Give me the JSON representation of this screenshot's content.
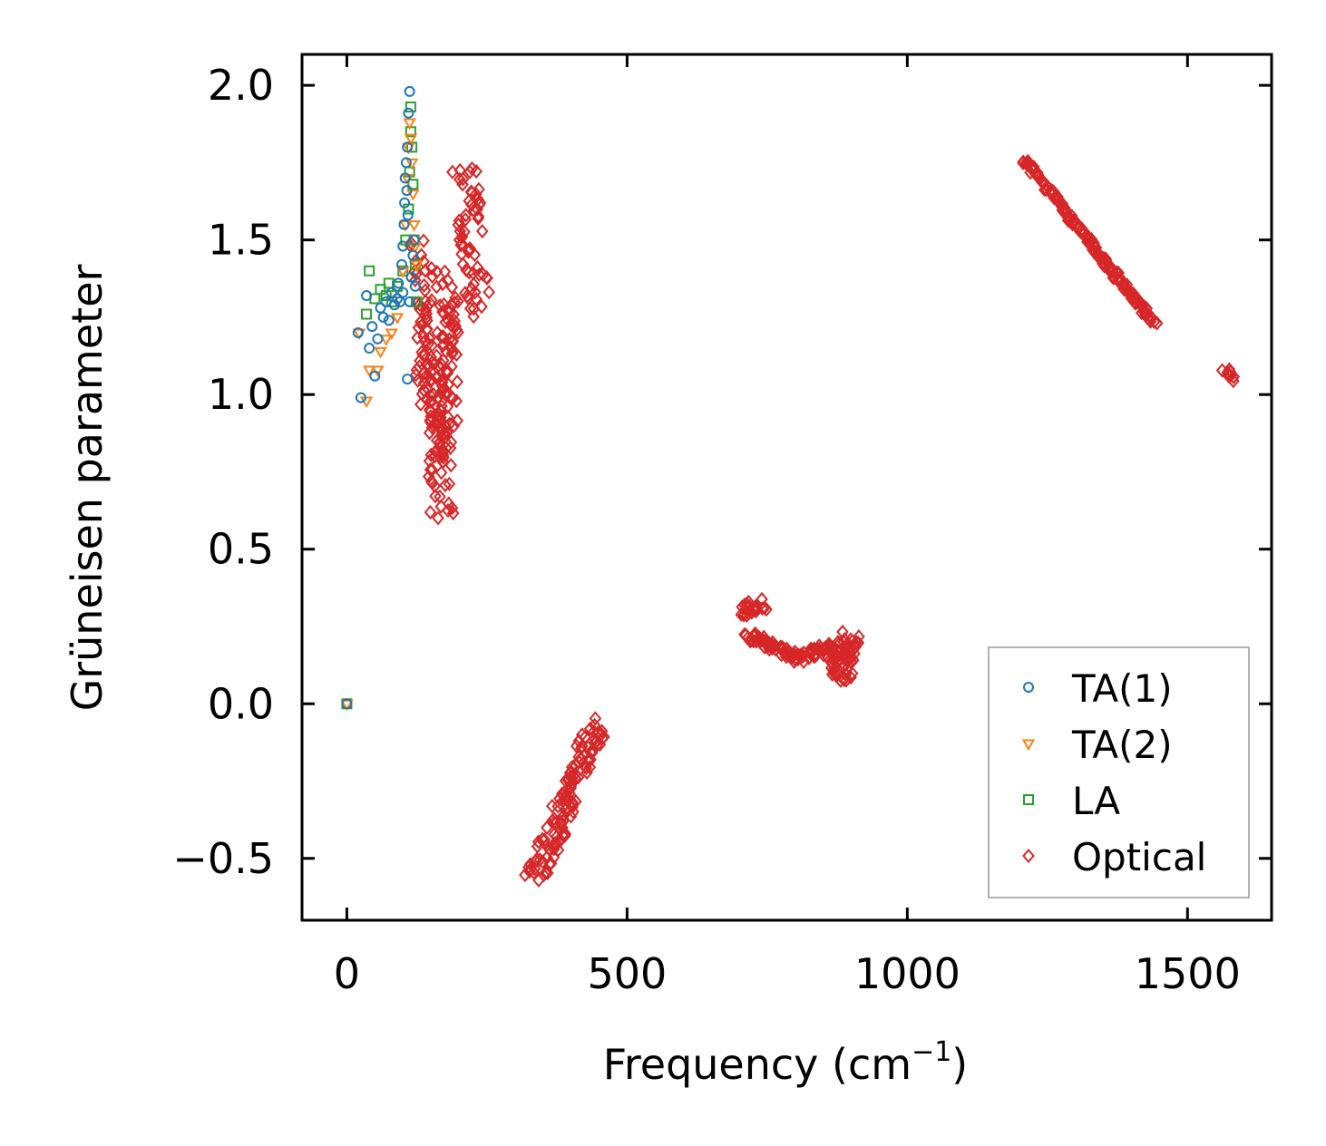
{
  "chart_data": {
    "type": "scatter",
    "title": "",
    "xlabel": "Frequency (cm",
    "xlabel_sup": "−1",
    "xlabel_end": ")",
    "ylabel": "Grüneisen parameter",
    "xlim": [
      -80,
      1650
    ],
    "ylim": [
      -0.7,
      2.1
    ],
    "xticks": [
      0,
      500,
      1000,
      1500
    ],
    "xtick_labels": [
      "0",
      "500",
      "1000",
      "1500"
    ],
    "yticks": [
      -0.5,
      0.0,
      0.5,
      1.0,
      1.5,
      2.0
    ],
    "ytick_labels": [
      "−0.5",
      "0.0",
      "0.5",
      "1.0",
      "1.5",
      "2.0"
    ],
    "grid": false,
    "legend_position": "lower-right",
    "series": [
      {
        "name": "TA(1)",
        "marker": "circle",
        "color": "#1f77b4",
        "points": [
          [
            0,
            0
          ],
          [
            20,
            1.2
          ],
          [
            25,
            0.99
          ],
          [
            35,
            1.32
          ],
          [
            40,
            1.15
          ],
          [
            45,
            1.22
          ],
          [
            50,
            1.06
          ],
          [
            55,
            1.18
          ],
          [
            60,
            1.28
          ],
          [
            65,
            1.25
          ],
          [
            70,
            1.3
          ],
          [
            75,
            1.24
          ],
          [
            80,
            1.33
          ],
          [
            85,
            1.29
          ],
          [
            90,
            1.31
          ],
          [
            92,
            1.36
          ],
          [
            95,
            1.3
          ],
          [
            98,
            1.42
          ],
          [
            100,
            1.33
          ],
          [
            100,
            1.48
          ],
          [
            102,
            1.55
          ],
          [
            103,
            1.62
          ],
          [
            104,
            1.7
          ],
          [
            106,
            1.75
          ],
          [
            107,
            1.66
          ],
          [
            108,
            1.05
          ],
          [
            108,
            1.8
          ],
          [
            109,
            1.58
          ],
          [
            110,
            1.91
          ],
          [
            112,
            1.98
          ],
          [
            112,
            1.3
          ],
          [
            115,
            1.38
          ],
          [
            118,
            1.45
          ],
          [
            120,
            1.5
          ],
          [
            122,
            1.35
          ]
        ]
      },
      {
        "name": "TA(2)",
        "marker": "triangle",
        "color": "#ff7f0e",
        "points": [
          [
            0,
            0
          ],
          [
            22,
            1.2
          ],
          [
            35,
            0.98
          ],
          [
            40,
            1.08
          ],
          [
            55,
            1.08
          ],
          [
            60,
            1.14
          ],
          [
            70,
            1.18
          ],
          [
            80,
            1.2
          ],
          [
            90,
            1.25
          ],
          [
            100,
            1.4
          ],
          [
            105,
            1.55
          ],
          [
            108,
            1.7
          ],
          [
            110,
            1.8
          ],
          [
            112,
            1.88
          ],
          [
            114,
            1.83
          ],
          [
            116,
            1.75
          ],
          [
            118,
            1.65
          ],
          [
            120,
            1.55
          ],
          [
            122,
            1.48
          ],
          [
            125,
            1.42
          ]
        ]
      },
      {
        "name": "LA",
        "marker": "square",
        "color": "#2ca02c",
        "points": [
          [
            0,
            0
          ],
          [
            35,
            1.26
          ],
          [
            40,
            1.4
          ],
          [
            50,
            1.31
          ],
          [
            60,
            1.34
          ],
          [
            70,
            1.32
          ],
          [
            75,
            1.36
          ],
          [
            80,
            1.3
          ],
          [
            90,
            1.35
          ],
          [
            100,
            1.4
          ],
          [
            105,
            1.5
          ],
          [
            110,
            1.6
          ],
          [
            112,
            1.72
          ],
          [
            114,
            1.85
          ],
          [
            114,
            1.93
          ],
          [
            116,
            1.8
          ],
          [
            118,
            1.68
          ],
          [
            120,
            1.5
          ],
          [
            122,
            1.42
          ],
          [
            124,
            1.3
          ]
        ]
      },
      {
        "name": "Optical",
        "marker": "diamond",
        "color": "#d62728",
        "segments": [
          {
            "start": [
              125,
              1.5
            ],
            "end": [
              135,
              1.05
            ],
            "halfwidth": 8,
            "count": 30
          },
          {
            "start": [
              140,
              1.3
            ],
            "end": [
              145,
              0.9
            ],
            "halfwidth": 8,
            "count": 25
          },
          {
            "start": [
              150,
              1.1
            ],
            "end": [
              160,
              0.75
            ],
            "halfwidth": 10,
            "count": 25
          },
          {
            "start": [
              170,
              1.4
            ],
            "end": [
              170,
              0.6
            ],
            "halfwidth": 14,
            "count": 80
          },
          {
            "start": [
              185,
              1.3
            ],
            "end": [
              180,
              0.8
            ],
            "halfwidth": 10,
            "count": 40
          },
          {
            "start": [
              210,
              1.73
            ],
            "end": [
              235,
              1.27
            ],
            "halfwidth": 14,
            "count": 60
          },
          {
            "start": [
              335,
              -0.56
            ],
            "end": [
              448,
              -0.07
            ],
            "halfwidth": 13,
            "count": 120
          },
          {
            "start": [
              710,
              0.3
            ],
            "end": [
              735,
              0.32
            ],
            "halfwidth": 12,
            "count": 25
          },
          {
            "start": [
              715,
              0.22
            ],
            "end": [
              810,
              0.15
            ],
            "halfwidth": 7,
            "count": 60
          },
          {
            "start": [
              810,
              0.15
            ],
            "end": [
              865,
              0.18
            ],
            "halfwidth": 9,
            "count": 35
          },
          {
            "start": [
              860,
              0.1
            ],
            "end": [
              900,
              0.22
            ],
            "halfwidth": 10,
            "count": 40
          },
          {
            "start": [
              900,
              0.2
            ],
            "end": [
              890,
              0.07
            ],
            "halfwidth": 7,
            "count": 20
          },
          {
            "start": [
              1210,
              1.76
            ],
            "end": [
              1440,
              1.23
            ],
            "halfwidth": 4,
            "count": 160
          },
          {
            "start": [
              1568,
              1.08
            ],
            "end": [
              1578,
              1.05
            ],
            "halfwidth": 4,
            "count": 10
          }
        ]
      }
    ]
  }
}
